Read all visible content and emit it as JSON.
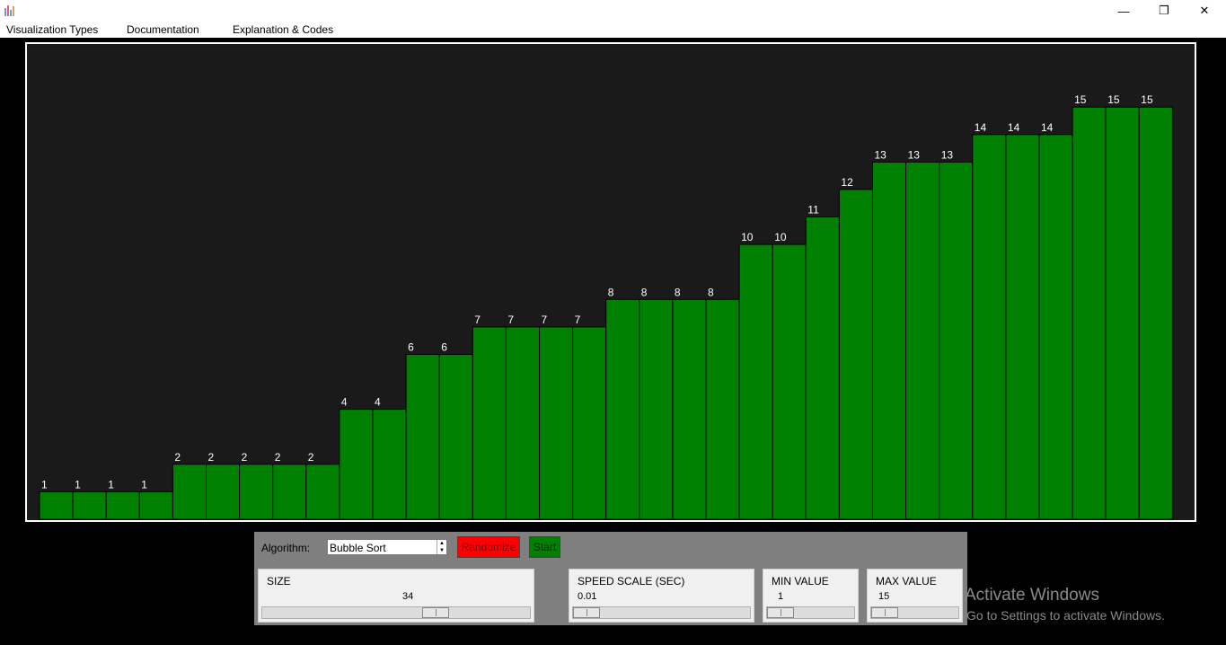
{
  "window": {
    "minimize_glyph": "—",
    "restore_glyph": "❐",
    "close_glyph": "✕"
  },
  "menu": {
    "items": [
      "Visualization Types",
      "Documentation",
      "Explanation & Codes"
    ]
  },
  "chart_data": {
    "type": "bar",
    "values": [
      1,
      1,
      1,
      1,
      2,
      2,
      2,
      2,
      2,
      4,
      4,
      6,
      6,
      7,
      7,
      7,
      7,
      8,
      8,
      8,
      8,
      10,
      10,
      11,
      12,
      13,
      13,
      13,
      14,
      14,
      14,
      15,
      15,
      15
    ],
    "ylim": [
      0,
      17
    ],
    "bar_color": "#008000",
    "background": "#1b1a1b",
    "label_color": "#ffffff"
  },
  "controls": {
    "algorithm_label": "Algorithm:",
    "algorithm_value": "Bubble Sort",
    "randomize_label": "Randomize",
    "randomize_color": "#ff0000",
    "start_label": "Start",
    "start_color": "#008000",
    "size": {
      "title": "SIZE",
      "value": 34,
      "min": 3,
      "max": 50
    },
    "speed": {
      "title": "SPEED SCALE (SEC)",
      "value": "0.01"
    },
    "min_value": {
      "title": "MIN VALUE",
      "value": "1"
    },
    "max_value": {
      "title": "MAX VALUE",
      "value": "15"
    }
  },
  "watermark": {
    "line1": "Activate Windows",
    "line2": "Go to Settings to activate Windows."
  }
}
